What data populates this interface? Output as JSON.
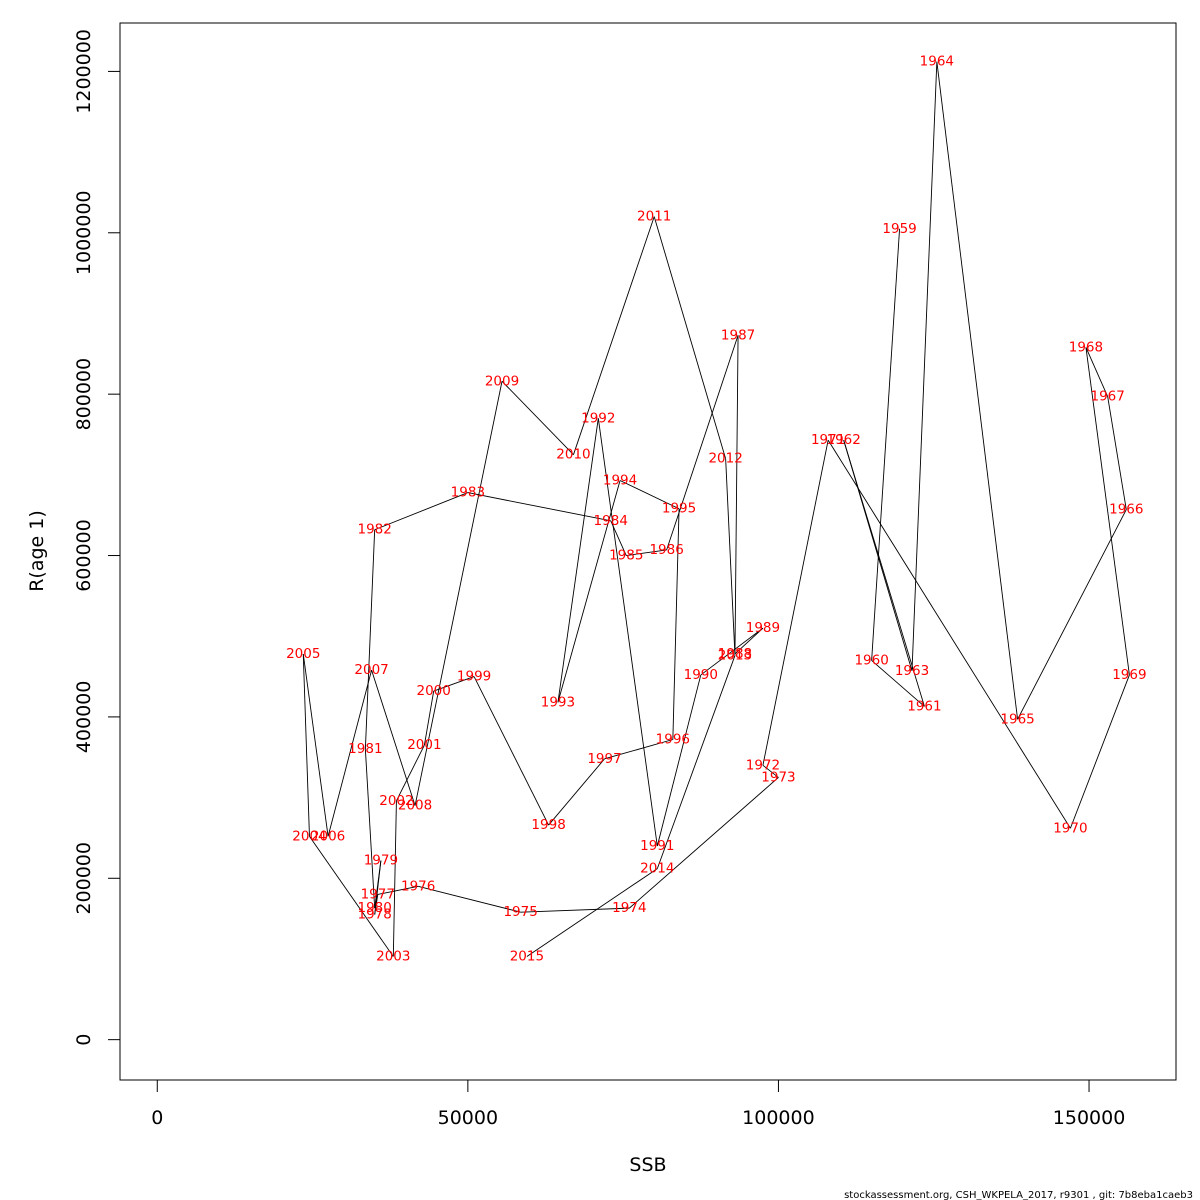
{
  "chart_data": {
    "type": "line",
    "xlabel": "SSB",
    "ylabel": "R(age 1)",
    "xlim": [
      -6000,
      164000
    ],
    "ylim": [
      -50000,
      1260000
    ],
    "x_ticks": [
      0,
      50000,
      100000,
      150000
    ],
    "x_tick_labels": [
      "0",
      "50000",
      "100000",
      "150000"
    ],
    "y_ticks": [
      0,
      200000,
      400000,
      600000,
      800000,
      1000000,
      1200000
    ],
    "y_tick_labels": [
      "0",
      "200000",
      "400000",
      "600000",
      "800000",
      "1000000",
      "1200000"
    ],
    "grid": false,
    "point_label_color": "#ff0000",
    "line_color": "#000000",
    "points": [
      {
        "year": "1959",
        "x": 119500,
        "y": 1005000
      },
      {
        "year": "1960",
        "x": 115000,
        "y": 470000
      },
      {
        "year": "1961",
        "x": 123500,
        "y": 413000
      },
      {
        "year": "1962",
        "x": 110500,
        "y": 743000
      },
      {
        "year": "1963",
        "x": 121500,
        "y": 457000
      },
      {
        "year": "1964",
        "x": 125500,
        "y": 1212000
      },
      {
        "year": "1965",
        "x": 138500,
        "y": 397000
      },
      {
        "year": "1966",
        "x": 156000,
        "y": 657000
      },
      {
        "year": "1967",
        "x": 153000,
        "y": 797000
      },
      {
        "year": "1968",
        "x": 149500,
        "y": 858000
      },
      {
        "year": "1969",
        "x": 156500,
        "y": 452000
      },
      {
        "year": "1970",
        "x": 147000,
        "y": 262000
      },
      {
        "year": "1971",
        "x": 108000,
        "y": 743000
      },
      {
        "year": "1972",
        "x": 97500,
        "y": 340000
      },
      {
        "year": "1973",
        "x": 100000,
        "y": 325000
      },
      {
        "year": "1974",
        "x": 76000,
        "y": 163000
      },
      {
        "year": "1975",
        "x": 58500,
        "y": 158000
      },
      {
        "year": "1976",
        "x": 42000,
        "y": 190000
      },
      {
        "year": "1977",
        "x": 35500,
        "y": 180000
      },
      {
        "year": "1978",
        "x": 35000,
        "y": 155000
      },
      {
        "year": "1979",
        "x": 36000,
        "y": 222000
      },
      {
        "year": "1980",
        "x": 35000,
        "y": 163000
      },
      {
        "year": "1981",
        "x": 33500,
        "y": 360000
      },
      {
        "year": "1982",
        "x": 35000,
        "y": 632000
      },
      {
        "year": "1983",
        "x": 50000,
        "y": 678000
      },
      {
        "year": "1984",
        "x": 73000,
        "y": 643000
      },
      {
        "year": "1985",
        "x": 75500,
        "y": 600000
      },
      {
        "year": "1986",
        "x": 82000,
        "y": 607000
      },
      {
        "year": "1987",
        "x": 93500,
        "y": 873000
      },
      {
        "year": "1988",
        "x": 93000,
        "y": 478000
      },
      {
        "year": "1989",
        "x": 97500,
        "y": 510000
      },
      {
        "year": "1990",
        "x": 87500,
        "y": 452000
      },
      {
        "year": "1991",
        "x": 80500,
        "y": 240000
      },
      {
        "year": "1992",
        "x": 71000,
        "y": 770000
      },
      {
        "year": "1993",
        "x": 64500,
        "y": 418000
      },
      {
        "year": "1994",
        "x": 74500,
        "y": 693000
      },
      {
        "year": "1995",
        "x": 84000,
        "y": 658000
      },
      {
        "year": "1996",
        "x": 83000,
        "y": 372000
      },
      {
        "year": "1997",
        "x": 72000,
        "y": 348000
      },
      {
        "year": "1998",
        "x": 63000,
        "y": 266000
      },
      {
        "year": "1999",
        "x": 51000,
        "y": 450000
      },
      {
        "year": "2000",
        "x": 44500,
        "y": 432000
      },
      {
        "year": "2001",
        "x": 43000,
        "y": 365000
      },
      {
        "year": "2002",
        "x": 38500,
        "y": 296000
      },
      {
        "year": "2003",
        "x": 38000,
        "y": 103000
      },
      {
        "year": "2004",
        "x": 24500,
        "y": 252000
      },
      {
        "year": "2005",
        "x": 23500,
        "y": 478000
      },
      {
        "year": "2006",
        "x": 27500,
        "y": 252000
      },
      {
        "year": "2007",
        "x": 34500,
        "y": 458000
      },
      {
        "year": "2008",
        "x": 41500,
        "y": 290000
      },
      {
        "year": "2009",
        "x": 55500,
        "y": 816000
      },
      {
        "year": "2010",
        "x": 67000,
        "y": 725000
      },
      {
        "year": "2011",
        "x": 80000,
        "y": 1020000
      },
      {
        "year": "2012",
        "x": 91500,
        "y": 720000
      },
      {
        "year": "2013",
        "x": 93000,
        "y": 476000
      },
      {
        "year": "2014",
        "x": 80500,
        "y": 212000
      },
      {
        "year": "2015",
        "x": 59500,
        "y": 103000
      }
    ]
  },
  "footer": {
    "text": "stockassessment.org, CSH_WKPELA_2017, r9301 , git: 7b8eba1caeb3"
  }
}
